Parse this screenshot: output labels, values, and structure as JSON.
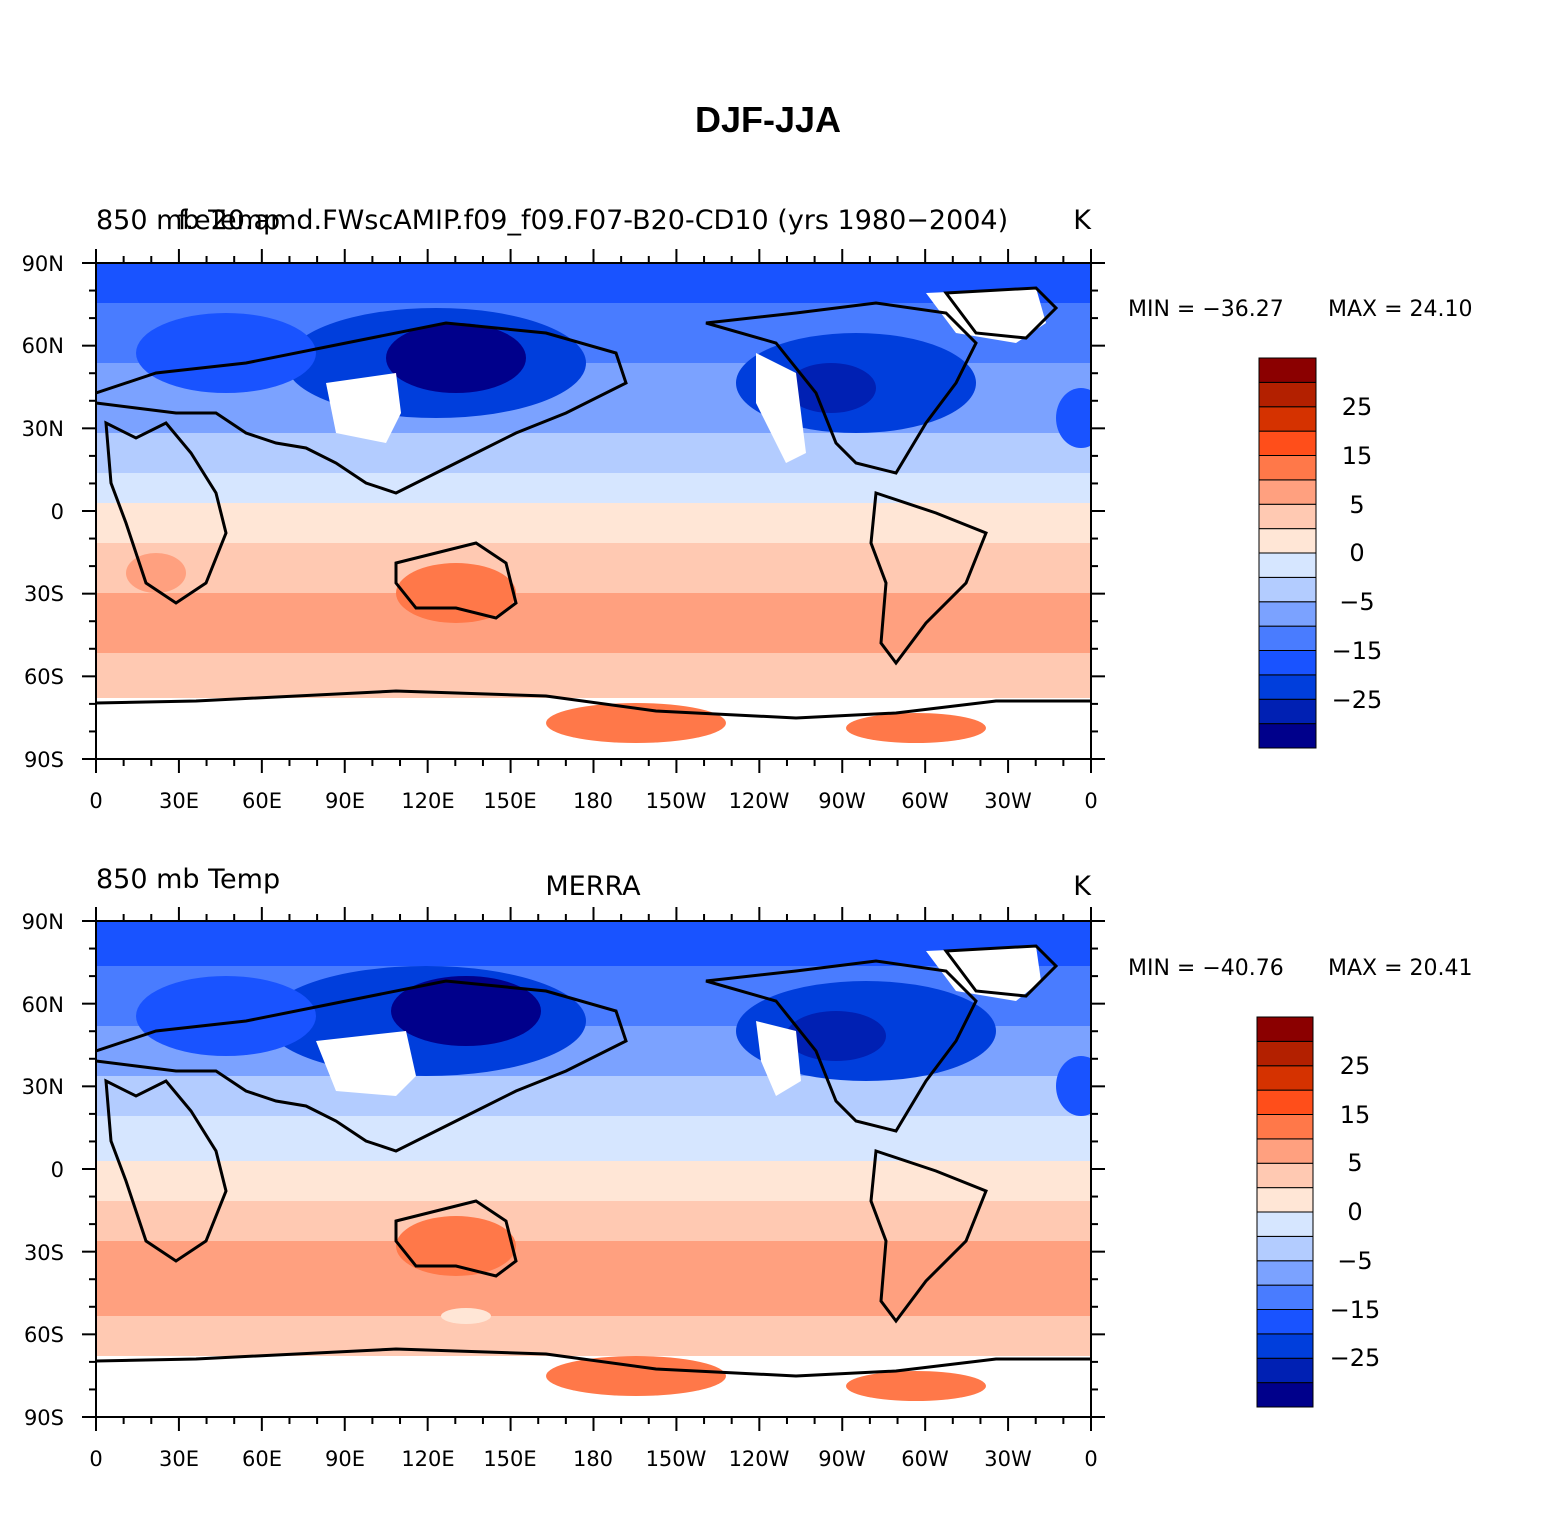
{
  "figure": {
    "title": "DJF-JJA"
  },
  "axes": {
    "lat_labels": [
      "90N",
      "60N",
      "30N",
      "0",
      "30S",
      "60S",
      "90S"
    ],
    "lon_labels": [
      "0",
      "30E",
      "60E",
      "90E",
      "120E",
      "150E",
      "180",
      "150W",
      "120W",
      "90W",
      "60W",
      "30W",
      "0"
    ]
  },
  "colorbar": {
    "labels": [
      "25",
      "15",
      "5",
      "0",
      "−5",
      "−15",
      "−25"
    ],
    "colors": [
      "#00008b",
      "#0020b3",
      "#003edc",
      "#1953ff",
      "#497cff",
      "#7ba2ff",
      "#b3ccff",
      "#d6e6ff",
      "#ffe6d6",
      "#ffc9b2",
      "#ffa07f",
      "#ff7849",
      "#ff4e1a",
      "#d53200",
      "#b32000",
      "#8b0000"
    ]
  },
  "panels": [
    {
      "left_title": "850 mb Temp",
      "center_title": "f.e20.amd.FWscAMIP.f09_f09.F07-B20-CD10 (yrs 1980−2004)",
      "units": "K",
      "min_label": "MIN = −36.27",
      "max_label": "MAX =   24.10"
    },
    {
      "left_title": "850 mb Temp",
      "center_title": "MERRA",
      "units": "K",
      "min_label": "MIN = −40.76",
      "max_label": "MAX =   20.41"
    }
  ]
}
